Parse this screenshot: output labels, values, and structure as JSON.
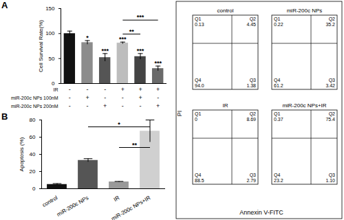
{
  "chart_data": [
    {
      "panel": "A",
      "type": "bar",
      "y_label": "Cell Survival Rate(%)",
      "categories": [
        null,
        null,
        null,
        null,
        null,
        null
      ],
      "values": [
        100,
        82,
        52,
        81,
        54,
        30
      ],
      "error": [
        5,
        4,
        8,
        2,
        6,
        5
      ],
      "colors": [
        "#111111",
        "#8c8c8c",
        "#555555",
        "#bdbdbd",
        "#444444",
        "#6a6a6a"
      ],
      "significance": [
        null,
        "*",
        "***",
        "***",
        "***",
        "***"
      ],
      "groups": [
        {
          "label": "IR",
          "values": [
            "-",
            "-",
            "-",
            "+",
            "+",
            "+"
          ]
        },
        {
          "label": "miR-200c NPs 100nM",
          "values": [
            "-",
            "+",
            "-",
            "-",
            "+",
            "-"
          ]
        },
        {
          "label": "miR-200c NPs 200nM",
          "values": [
            "-",
            "-",
            "+",
            "-",
            "-",
            "+"
          ]
        }
      ],
      "comparisons": [
        {
          "from": 3,
          "to": 5,
          "y": 127,
          "label": "***"
        },
        {
          "from": 3,
          "to": 4,
          "y": 99,
          "label": "**"
        }
      ],
      "ylim": [
        0,
        150
      ],
      "yticks": [
        0,
        50,
        100,
        150
      ],
      "tick_labels": "y"
    },
    {
      "panel": "B",
      "type": "bar",
      "y_label": "Apoptosis (%)",
      "categories": [
        "control",
        "miR-200c NPs",
        "IR",
        "miR-200c NPs+IR"
      ],
      "values": [
        5,
        33,
        8,
        67
      ],
      "error": [
        1,
        2,
        0.5,
        13
      ],
      "colors": [
        "#111111",
        "#555555",
        "#999999",
        "#d0d0d0"
      ],
      "comparisons": [
        {
          "from": 1,
          "to": 3,
          "y": 72,
          "label": "*"
        },
        {
          "from": 2,
          "to": 3,
          "y": 48,
          "label": "**"
        }
      ],
      "ylim": [
        0,
        80
      ],
      "yticks": [
        0,
        20,
        40,
        60,
        80
      ]
    }
  ],
  "flow_cytometry": {
    "x_label": "Annexin V-FITC",
    "y_label": "PI",
    "plots": [
      {
        "title": "control",
        "quadrants": [
          {
            "name": "Q1",
            "value": "0.13"
          },
          {
            "name": "Q2",
            "value": "4.45"
          },
          {
            "name": "Q3",
            "value": "1.38"
          },
          {
            "name": "Q4",
            "value": "94.0"
          }
        ]
      },
      {
        "title": "miR-200c NPs",
        "quadrants": [
          {
            "name": "Q1",
            "value": "0.22"
          },
          {
            "name": "Q2",
            "value": "35.2"
          },
          {
            "name": "Q3",
            "value": "3.42"
          },
          {
            "name": "Q4",
            "value": "61.2"
          }
        ]
      },
      {
        "title": "IR",
        "quadrants": [
          {
            "name": "Q1",
            "value": "0"
          },
          {
            "name": "Q2",
            "value": "8.69"
          },
          {
            "name": "Q3",
            "value": "2.79"
          },
          {
            "name": "Q4",
            "value": "88.5"
          }
        ]
      },
      {
        "title": "miR-200c NPs+IR",
        "quadrants": [
          {
            "name": "Q1",
            "value": "0.37"
          },
          {
            "name": "Q2",
            "value": "75.4"
          },
          {
            "name": "Q3",
            "value": "1.10"
          },
          {
            "name": "Q4",
            "value": "23.2"
          }
        ]
      }
    ]
  }
}
